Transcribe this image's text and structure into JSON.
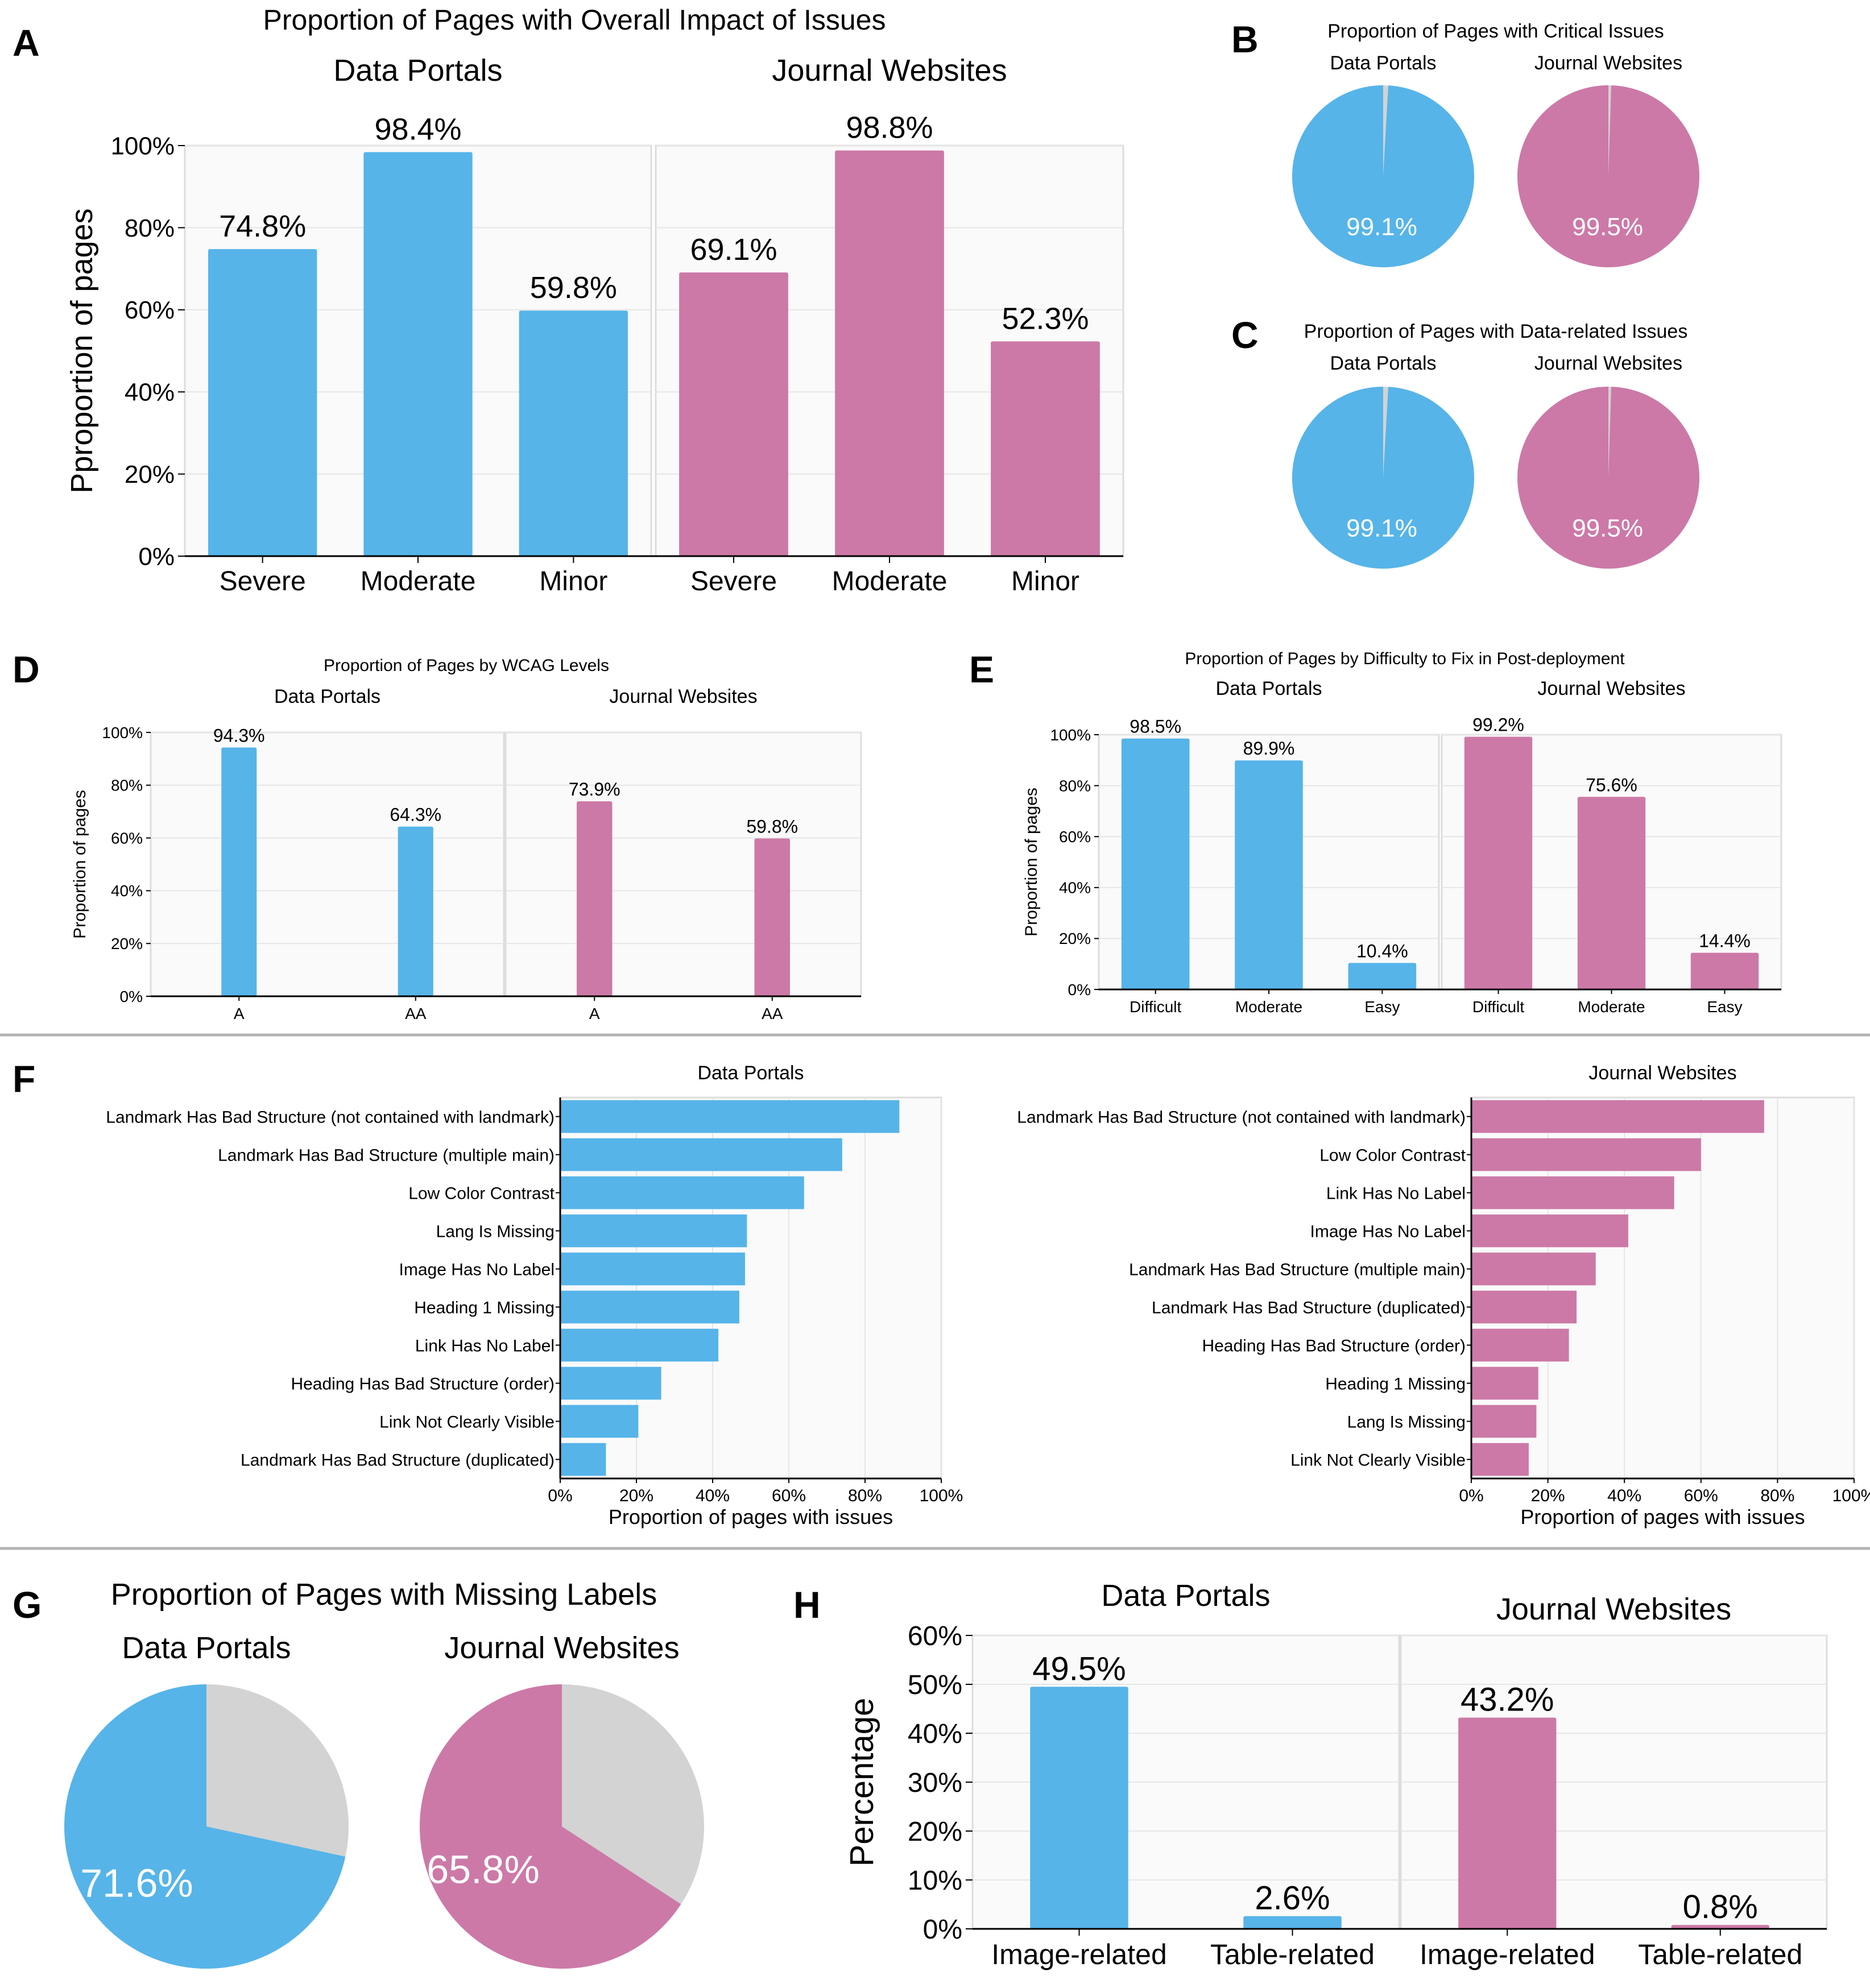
{
  "colors": {
    "dp": "#56b4e9",
    "jw": "#cc79a7",
    "gray": "#d3d3d3",
    "plotbg": "#fafafa",
    "grid": "#e6e6e6",
    "sep": "#b3b3b3"
  },
  "chart_data": [
    {
      "id": "A",
      "type": "bar",
      "panel_letter": "A",
      "title": "Proportion of Pages with Overall Impact of Issues",
      "ylabel": "Pproportion of pages",
      "ylim": [
        0,
        100
      ],
      "y_ticks": [
        "0%",
        "20%",
        "40%",
        "60%",
        "80%",
        "100%"
      ],
      "categories": [
        "Severe",
        "Moderate",
        "Minor"
      ],
      "series": [
        {
          "name": "Data Portals",
          "values": [
            74.8,
            98.4,
            59.8
          ],
          "labels": [
            "74.8%",
            "98.4%",
            "59.8%"
          ]
        },
        {
          "name": "Journal Websites",
          "values": [
            69.1,
            98.8,
            52.3
          ],
          "labels": [
            "69.1%",
            "98.8%",
            "52.3%"
          ]
        }
      ]
    },
    {
      "id": "B",
      "type": "pie",
      "panel_letter": "B",
      "title": "Proportion of Pages with Critical Issues",
      "series": [
        {
          "name": "Data Portals",
          "value": 99.1,
          "label": "99.1%"
        },
        {
          "name": "Journal Websites",
          "value": 99.5,
          "label": "99.5%"
        }
      ]
    },
    {
      "id": "C",
      "type": "pie",
      "panel_letter": "C",
      "title": "Proportion of Pages with Data-related Issues",
      "series": [
        {
          "name": "Data Portals",
          "value": 99.1,
          "label": "99.1%"
        },
        {
          "name": "Journal Websites",
          "value": 99.5,
          "label": "99.5%"
        }
      ]
    },
    {
      "id": "D",
      "type": "bar",
      "panel_letter": "D",
      "title": "Proportion of Pages by WCAG Levels",
      "ylabel": "Proportion of pages",
      "ylim": [
        0,
        100
      ],
      "y_ticks": [
        "0%",
        "20%",
        "40%",
        "60%",
        "80%",
        "100%"
      ],
      "categories": [
        "A",
        "AA"
      ],
      "series": [
        {
          "name": "Data Portals",
          "values": [
            94.3,
            64.3
          ],
          "labels": [
            "94.3%",
            "64.3%"
          ]
        },
        {
          "name": "Journal Websites",
          "values": [
            73.9,
            59.8
          ],
          "labels": [
            "73.9%",
            "59.8%"
          ]
        }
      ]
    },
    {
      "id": "E",
      "type": "bar",
      "panel_letter": "E",
      "title": "Proportion of Pages by Difficulty to Fix in Post-deployment",
      "ylabel": "Proportion of pages",
      "ylim": [
        0,
        100
      ],
      "y_ticks": [
        "0%",
        "20%",
        "40%",
        "60%",
        "80%",
        "100%"
      ],
      "categories": [
        "Difficult",
        "Moderate",
        "Easy"
      ],
      "series": [
        {
          "name": "Data Portals",
          "values": [
            98.5,
            89.9,
            10.4
          ],
          "labels": [
            "98.5%",
            "89.9%",
            "10.4%"
          ]
        },
        {
          "name": "Journal Websites",
          "values": [
            99.2,
            75.6,
            14.4
          ],
          "labels": [
            "99.2%",
            "75.6%",
            "14.4%"
          ]
        }
      ]
    },
    {
      "id": "F",
      "type": "bar",
      "orientation": "horizontal",
      "panel_letter": "F",
      "xlabel": "Proportion of pages with issues",
      "xlim": [
        0,
        100
      ],
      "x_ticks": [
        "0%",
        "20%",
        "40%",
        "60%",
        "80%",
        "100%"
      ],
      "series": [
        {
          "name": "Data Portals",
          "categories": [
            "Landmark Has Bad Structure (not contained with landmark)",
            "Landmark Has Bad Structure (multiple main)",
            "Low Color Contrast",
            "Lang Is Missing",
            "Image Has No Label",
            "Heading 1 Missing",
            "Link Has No Label",
            "Heading Has Bad Structure (order)",
            "Link Not Clearly Visible",
            "Landmark Has Bad Structure (duplicated)"
          ],
          "values": [
            89,
            74,
            64,
            49,
            48.5,
            47,
            41.5,
            26.5,
            20.5,
            12
          ]
        },
        {
          "name": "Journal Websites",
          "categories": [
            "Landmark Has Bad Structure (not contained with landmark)",
            "Low Color Contrast",
            "Link Has No Label",
            "Image Has No Label",
            "Landmark Has Bad Structure (multiple main)",
            "Landmark Has Bad Structure (duplicated)",
            "Heading Has Bad Structure (order)",
            "Heading 1 Missing",
            "Lang Is Missing",
            "Link Not Clearly Visible"
          ],
          "values": [
            76.5,
            60,
            53,
            41,
            32.5,
            27.5,
            25.5,
            17.5,
            17,
            15
          ]
        }
      ]
    },
    {
      "id": "G",
      "type": "pie",
      "panel_letter": "G",
      "title": "Proportion of Pages with Missing Labels",
      "series": [
        {
          "name": "Data Portals",
          "value": 71.6,
          "label": "71.6%"
        },
        {
          "name": "Journal Websites",
          "value": 65.8,
          "label": "65.8%"
        }
      ]
    },
    {
      "id": "H",
      "type": "bar",
      "panel_letter": "H",
      "ylabel": "Percentage",
      "ylim": [
        0,
        60
      ],
      "y_ticks": [
        "0%",
        "10%",
        "20%",
        "30%",
        "40%",
        "50%",
        "60%"
      ],
      "categories": [
        "Image-related",
        "Table-related"
      ],
      "series": [
        {
          "name": "Data Portals",
          "values": [
            49.5,
            2.6
          ],
          "labels": [
            "49.5%",
            "2.6%"
          ]
        },
        {
          "name": "Journal Websites",
          "values": [
            43.2,
            0.8
          ],
          "labels": [
            "43.2%",
            "0.8%"
          ]
        }
      ]
    }
  ]
}
